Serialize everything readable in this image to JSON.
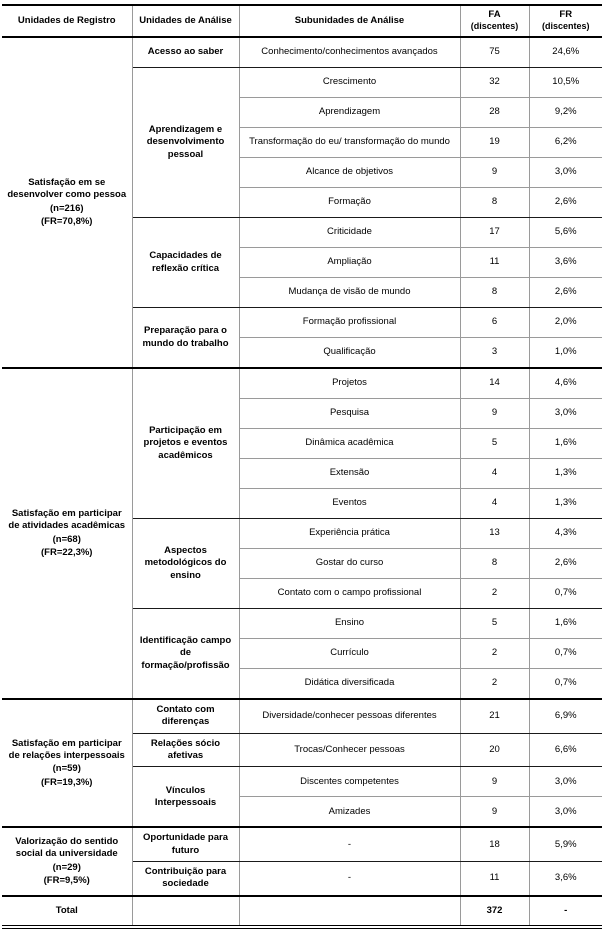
{
  "table": {
    "headers": [
      {
        "label": "Unidades de Registro"
      },
      {
        "label": "Unidades de Análise"
      },
      {
        "label": "Subunidades de Análise"
      },
      {
        "label": "FA",
        "sub": "(discentes)"
      },
      {
        "label": "FR",
        "sub": "(discentes)"
      }
    ],
    "groups": [
      {
        "registro": {
          "name": "Satisfação em se desenvolver como pessoa",
          "n": "(n=216)",
          "fr": "(FR=70,8%)"
        },
        "analises": [
          {
            "label": "Acesso ao saber",
            "rows": [
              {
                "sub": "Conhecimento/conhecimentos avançados",
                "fa": "75",
                "fr": "24,6%"
              }
            ]
          },
          {
            "label": "Aprendizagem e desenvolvimento pessoal",
            "rows": [
              {
                "sub": "Crescimento",
                "fa": "32",
                "fr": "10,5%"
              },
              {
                "sub": "Aprendizagem",
                "fa": "28",
                "fr": "9,2%"
              },
              {
                "sub": "Transformação do eu/ transformação do mundo",
                "fa": "19",
                "fr": "6,2%"
              },
              {
                "sub": "Alcance de objetivos",
                "fa": "9",
                "fr": "3,0%"
              },
              {
                "sub": "Formação",
                "fa": "8",
                "fr": "2,6%"
              }
            ]
          },
          {
            "label": "Capacidades de reflexão crítica",
            "rows": [
              {
                "sub": "Criticidade",
                "fa": "17",
                "fr": "5,6%"
              },
              {
                "sub": "Ampliação",
                "fa": "11",
                "fr": "3,6%"
              },
              {
                "sub": "Mudança de visão de mundo",
                "fa": "8",
                "fr": "2,6%"
              }
            ]
          },
          {
            "label": "Preparação para o mundo do trabalho",
            "rows": [
              {
                "sub": "Formação profissional",
                "fa": "6",
                "fr": "2,0%"
              },
              {
                "sub": "Qualificação",
                "fa": "3",
                "fr": "1,0%"
              }
            ]
          }
        ]
      },
      {
        "registro": {
          "name": "Satisfação em participar de atividades acadêmicas",
          "n": "(n=68)",
          "fr": "(FR=22,3%)"
        },
        "analises": [
          {
            "label": "Participação em projetos e eventos acadêmicos",
            "rows": [
              {
                "sub": "Projetos",
                "fa": "14",
                "fr": "4,6%"
              },
              {
                "sub": "Pesquisa",
                "fa": "9",
                "fr": "3,0%"
              },
              {
                "sub": "Dinâmica acadêmica",
                "fa": "5",
                "fr": "1,6%"
              },
              {
                "sub": "Extensão",
                "fa": "4",
                "fr": "1,3%"
              },
              {
                "sub": "Eventos",
                "fa": "4",
                "fr": "1,3%"
              }
            ]
          },
          {
            "label": "Aspectos metodológicos do ensino",
            "rows": [
              {
                "sub": "Experiência prática",
                "fa": "13",
                "fr": "4,3%"
              },
              {
                "sub": "Gostar do curso",
                "fa": "8",
                "fr": "2,6%"
              },
              {
                "sub": "Contato com o campo profissional",
                "fa": "2",
                "fr": "0,7%"
              }
            ]
          },
          {
            "label": "Identificação campo de formação/profissão",
            "rows": [
              {
                "sub": "Ensino",
                "fa": "5",
                "fr": "1,6%"
              },
              {
                "sub": "Currículo",
                "fa": "2",
                "fr": "0,7%"
              },
              {
                "sub": "Didática diversificada",
                "fa": "2",
                "fr": "0,7%"
              }
            ]
          }
        ]
      },
      {
        "registro": {
          "name": "Satisfação em participar de relações interpessoais",
          "n": "(n=59)",
          "fr": "(FR=19,3%)"
        },
        "analises": [
          {
            "label": "Contato com diferenças",
            "rows": [
              {
                "sub": "Diversidade/conhecer pessoas diferentes",
                "fa": "21",
                "fr": "6,9%"
              }
            ]
          },
          {
            "label": "Relações sócio afetivas",
            "rows": [
              {
                "sub": "Trocas/Conhecer pessoas",
                "fa": "20",
                "fr": "6,6%"
              }
            ]
          },
          {
            "label": "Vínculos Interpessoais",
            "rows": [
              {
                "sub": "Discentes competentes",
                "fa": "9",
                "fr": "3,0%"
              },
              {
                "sub": "Amizades",
                "fa": "9",
                "fr": "3,0%"
              }
            ]
          }
        ]
      },
      {
        "registro": {
          "name": "Valorização do sentido social da universidade",
          "n": "(n=29)",
          "fr": "(FR=9,5%)"
        },
        "analises": [
          {
            "label": "Oportunidade para futuro",
            "rows": [
              {
                "sub": "-",
                "fa": "18",
                "fr": "5,9%"
              }
            ]
          },
          {
            "label": "Contribuição para sociedade",
            "rows": [
              {
                "sub": "-",
                "fa": "11",
                "fr": "3,6%"
              }
            ]
          }
        ]
      }
    ],
    "total": {
      "label": "Total",
      "fa": "372",
      "fr": "-"
    }
  }
}
